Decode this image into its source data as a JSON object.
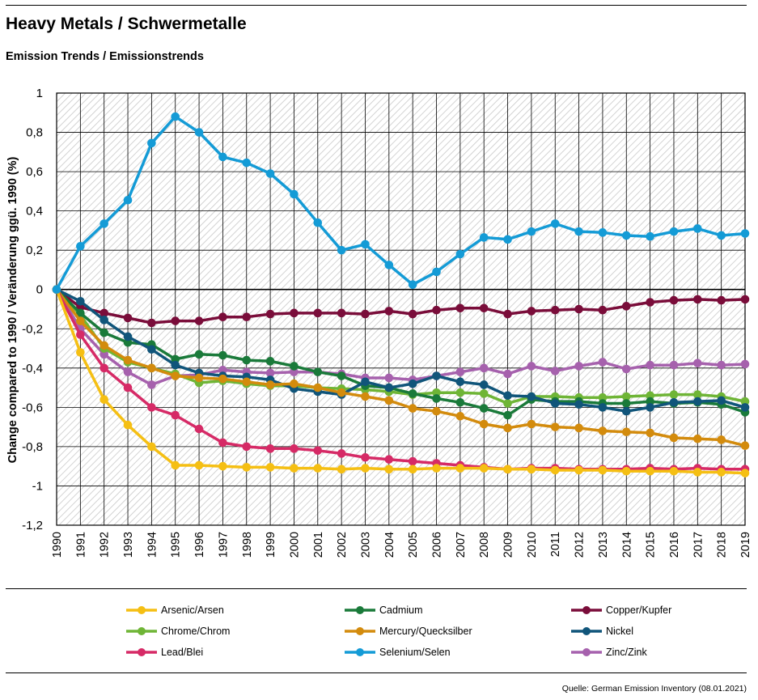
{
  "header": {
    "title": "Heavy Metals / Schwermetalle",
    "subtitle": "Emission Trends / Emissionstrends"
  },
  "source": "Quelle: German Emission Inventory (08.01.2021)",
  "chart_data": {
    "type": "line",
    "x": [
      1990,
      1991,
      1992,
      1993,
      1994,
      1995,
      1996,
      1997,
      1998,
      1999,
      2000,
      2001,
      2002,
      2003,
      2004,
      2005,
      2006,
      2007,
      2008,
      2009,
      2010,
      2011,
      2012,
      2013,
      2014,
      2015,
      2016,
      2017,
      2018,
      2019
    ],
    "ylabel": "Change compared to 1990 / Veränderung ggü. 1990 (%)",
    "ylim": [
      -1.2,
      1
    ],
    "yticks": [
      1,
      0.8,
      0.6,
      0.4,
      0.2,
      0,
      -0.2,
      -0.4,
      -0.6,
      -0.8,
      -1,
      -1.2
    ],
    "ytick_labels": [
      "1",
      "0,8",
      "0,6",
      "0,4",
      "0,2",
      "0",
      "-0,2",
      "-0,4",
      "-0,6",
      "-0,8",
      "-1",
      "-1,2"
    ],
    "grid": true,
    "legend_position": "bottom",
    "series": [
      {
        "name": "Copper/Kupfer",
        "color": "#7a0d3a",
        "values": [
          0,
          -0.09,
          -0.12,
          -0.145,
          -0.17,
          -0.16,
          -0.16,
          -0.14,
          -0.14,
          -0.125,
          -0.12,
          -0.12,
          -0.12,
          -0.125,
          -0.11,
          -0.125,
          -0.105,
          -0.095,
          -0.095,
          -0.125,
          -0.11,
          -0.105,
          -0.1,
          -0.105,
          -0.085,
          -0.065,
          -0.055,
          -0.05,
          -0.055,
          -0.05
        ]
      },
      {
        "name": "Zinc/Zink",
        "color": "#a661ad",
        "values": [
          0,
          -0.2,
          -0.33,
          -0.42,
          -0.485,
          -0.44,
          -0.435,
          -0.41,
          -0.42,
          -0.425,
          -0.42,
          -0.42,
          -0.43,
          -0.45,
          -0.45,
          -0.46,
          -0.44,
          -0.42,
          -0.4,
          -0.43,
          -0.39,
          -0.415,
          -0.39,
          -0.37,
          -0.405,
          -0.385,
          -0.385,
          -0.375,
          -0.385,
          -0.38
        ]
      },
      {
        "name": "Chrome/Chrom",
        "color": "#6fb536",
        "values": [
          0,
          -0.13,
          -0.3,
          -0.37,
          -0.4,
          -0.43,
          -0.475,
          -0.465,
          -0.48,
          -0.49,
          -0.49,
          -0.5,
          -0.505,
          -0.51,
          -0.52,
          -0.535,
          -0.525,
          -0.525,
          -0.53,
          -0.58,
          -0.545,
          -0.545,
          -0.55,
          -0.55,
          -0.545,
          -0.54,
          -0.535,
          -0.535,
          -0.545,
          -0.57
        ]
      },
      {
        "name": "Cadmium",
        "color": "#1a7a3a",
        "values": [
          0,
          -0.12,
          -0.22,
          -0.27,
          -0.28,
          -0.355,
          -0.33,
          -0.335,
          -0.36,
          -0.365,
          -0.39,
          -0.42,
          -0.44,
          -0.49,
          -0.5,
          -0.53,
          -0.555,
          -0.575,
          -0.605,
          -0.64,
          -0.56,
          -0.57,
          -0.57,
          -0.58,
          -0.58,
          -0.57,
          -0.58,
          -0.575,
          -0.585,
          -0.625
        ]
      },
      {
        "name": "Nickel",
        "color": "#10557a",
        "values": [
          0,
          -0.06,
          -0.155,
          -0.24,
          -0.305,
          -0.385,
          -0.425,
          -0.44,
          -0.445,
          -0.46,
          -0.505,
          -0.52,
          -0.535,
          -0.47,
          -0.5,
          -0.48,
          -0.44,
          -0.47,
          -0.485,
          -0.54,
          -0.545,
          -0.58,
          -0.585,
          -0.6,
          -0.62,
          -0.6,
          -0.575,
          -0.57,
          -0.565,
          -0.6
        ]
      },
      {
        "name": "Mercury/Quecksilber",
        "color": "#d38b0d",
        "values": [
          0,
          -0.16,
          -0.285,
          -0.36,
          -0.4,
          -0.44,
          -0.45,
          -0.455,
          -0.47,
          -0.485,
          -0.48,
          -0.5,
          -0.525,
          -0.545,
          -0.565,
          -0.605,
          -0.62,
          -0.645,
          -0.685,
          -0.705,
          -0.685,
          -0.7,
          -0.705,
          -0.72,
          -0.725,
          -0.73,
          -0.755,
          -0.76,
          -0.765,
          -0.795
        ]
      },
      {
        "name": "Lead/Blei",
        "color": "#d62a66",
        "values": [
          0,
          -0.23,
          -0.4,
          -0.5,
          -0.6,
          -0.64,
          -0.71,
          -0.78,
          -0.8,
          -0.81,
          -0.81,
          -0.82,
          -0.835,
          -0.855,
          -0.865,
          -0.875,
          -0.885,
          -0.895,
          -0.905,
          -0.915,
          -0.91,
          -0.91,
          -0.915,
          -0.915,
          -0.915,
          -0.91,
          -0.915,
          -0.91,
          -0.915,
          -0.915
        ]
      },
      {
        "name": "Arsenic/Arsen",
        "color": "#f5bf13",
        "values": [
          0,
          -0.32,
          -0.56,
          -0.69,
          -0.8,
          -0.895,
          -0.895,
          -0.9,
          -0.905,
          -0.905,
          -0.91,
          -0.91,
          -0.915,
          -0.91,
          -0.915,
          -0.915,
          -0.91,
          -0.91,
          -0.91,
          -0.915,
          -0.915,
          -0.92,
          -0.92,
          -0.92,
          -0.925,
          -0.925,
          -0.925,
          -0.93,
          -0.93,
          -0.935
        ]
      },
      {
        "name": "Selenium/Selen",
        "color": "#149bd6",
        "values": [
          0,
          0.22,
          0.335,
          0.455,
          0.745,
          0.88,
          0.8,
          0.675,
          0.645,
          0.59,
          0.485,
          0.34,
          0.2,
          0.23,
          0.125,
          0.025,
          0.09,
          0.18,
          0.265,
          0.255,
          0.295,
          0.335,
          0.295,
          0.29,
          0.275,
          0.27,
          0.295,
          0.31,
          0.275,
          0.285
        ]
      }
    ],
    "legend": [
      {
        "label": "Arsenic/Arsen",
        "color": "#f5bf13"
      },
      {
        "label": "Cadmium",
        "color": "#1a7a3a"
      },
      {
        "label": "Copper/Kupfer",
        "color": "#7a0d3a"
      },
      {
        "label": "Chrome/Chrom",
        "color": "#6fb536"
      },
      {
        "label": "Mercury/Quecksilber",
        "color": "#d38b0d"
      },
      {
        "label": "Nickel",
        "color": "#10557a"
      },
      {
        "label": "Lead/Blei",
        "color": "#d62a66"
      },
      {
        "label": "Selenium/Selen",
        "color": "#149bd6"
      },
      {
        "label": "Zinc/Zink",
        "color": "#a661ad"
      }
    ]
  }
}
